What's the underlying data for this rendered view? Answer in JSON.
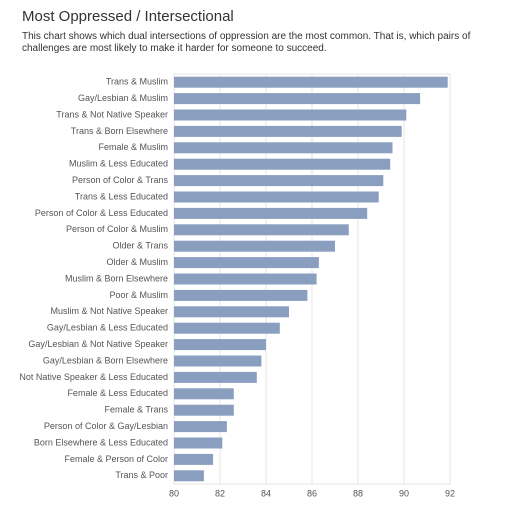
{
  "chart_data": {
    "type": "bar",
    "orientation": "horizontal",
    "title": "Most Oppressed / Intersectional",
    "subtitle": "This chart shows which dual intersections of oppression are the most common. That is, which pairs of challenges are most likely to make it harder for someone to succeed.",
    "categories": [
      "Trans & Muslim",
      "Gay/Lesbian & Muslim",
      "Trans & Not Native Speaker",
      "Trans & Born Elsewhere",
      "Female & Muslim",
      "Muslim & Less Educated",
      "Person of Color & Trans",
      "Trans & Less Educated",
      "Person of Color & Less Educated",
      "Person of Color & Muslim",
      "Older & Trans",
      "Older & Muslim",
      "Muslim & Born Elsewhere",
      "Poor & Muslim",
      "Muslim & Not Native Speaker",
      "Gay/Lesbian & Less Educated",
      "Gay/Lesbian & Not Native Speaker",
      "Gay/Lesbian & Born Elsewhere",
      "Not Native Speaker & Less Educated",
      "Female & Less Educated",
      "Female & Trans",
      "Person of Color & Gay/Lesbian",
      "Born Elsewhere & Less Educated",
      "Female & Person of Color",
      "Trans & Poor"
    ],
    "values": [
      91.9,
      90.7,
      90.1,
      89.9,
      89.5,
      89.4,
      89.1,
      88.9,
      88.4,
      87.6,
      87.0,
      86.3,
      86.2,
      85.8,
      85.0,
      84.6,
      84.0,
      83.8,
      83.6,
      82.6,
      82.6,
      82.3,
      82.1,
      81.7,
      81.3
    ],
    "color": "#8a9fbf",
    "xlim": [
      80,
      92
    ],
    "xticks": [
      80,
      82,
      84,
      86,
      88,
      90,
      92
    ],
    "grid": true
  }
}
